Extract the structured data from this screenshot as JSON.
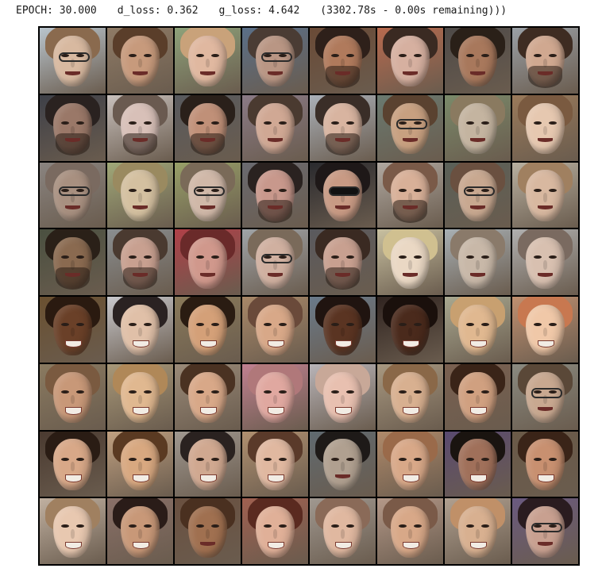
{
  "status": {
    "epoch_label": "EPOCH:",
    "epoch_value": "30.000",
    "d_loss_label": "d_loss:",
    "d_loss_value": "0.362",
    "g_loss_label": "g_loss:",
    "g_loss_value": "4.642",
    "timing": "(3302.78s - 0.00s remaining)))"
  },
  "grid": {
    "rows": 8,
    "cols": 8,
    "tiles": [
      {
        "skin": "#d8b9a0",
        "hair": "#8a6a4e",
        "bg": "#b9c4cc",
        "style": "specs"
      },
      {
        "skin": "#c79a7c",
        "hair": "#5a3e2a",
        "bg": "#8f7b66",
        "style": "plain"
      },
      {
        "skin": "#e0b8a0",
        "hair": "#c9a27a",
        "bg": "#8ea27a",
        "style": "plain"
      },
      {
        "skin": "#b99684",
        "hair": "#4a3c34",
        "bg": "#5a6f88",
        "style": "specs"
      },
      {
        "skin": "#b07a5c",
        "hair": "#2e201a",
        "bg": "#6a4a36",
        "style": "bearded"
      },
      {
        "skin": "#d6b0a0",
        "hair": "#3a2a22",
        "bg": "#b86a4e",
        "style": "plain"
      },
      {
        "skin": "#a8785c",
        "hair": "#2a2018",
        "bg": "#4e4a48",
        "style": "plain"
      },
      {
        "skin": "#d0a890",
        "hair": "#3e2c22",
        "bg": "#9aa0a6",
        "style": "bearded"
      },
      {
        "skin": "#9a7868",
        "hair": "#2a2220",
        "bg": "#3e4048",
        "style": "bearded"
      },
      {
        "skin": "#d8c0b8",
        "hair": "#6a5a50",
        "bg": "#c8c0bc",
        "style": "bearded"
      },
      {
        "skin": "#c09078",
        "hair": "#2a201a",
        "bg": "#585a5e",
        "style": "bearded"
      },
      {
        "skin": "#d0a894",
        "hair": "#4a3a30",
        "bg": "#8a7a86",
        "style": "plain"
      },
      {
        "skin": "#d8b4a0",
        "hair": "#3a2e28",
        "bg": "#aab0b8",
        "style": "bearded"
      },
      {
        "skin": "#c8a080",
        "hair": "#5a4230",
        "bg": "#6a7a70",
        "style": "specs"
      },
      {
        "skin": "#c4b4a0",
        "hair": "#8a7a60",
        "bg": "#7a8a6a",
        "style": "plain"
      },
      {
        "skin": "#e6c8b0",
        "hair": "#7a5a40",
        "bg": "#9a7a5a",
        "style": "plain"
      },
      {
        "skin": "#a89080",
        "hair": "#7a6a60",
        "bg": "#8a8480",
        "style": "specs"
      },
      {
        "skin": "#d4c0a0",
        "hair": "#9a8a60",
        "bg": "#a0a878",
        "style": "plain"
      },
      {
        "skin": "#d0b8a8",
        "hair": "#7a6a58",
        "bg": "#98a068",
        "style": "specs"
      },
      {
        "skin": "#c8988c",
        "hair": "#2a2220",
        "bg": "#6a6a70",
        "style": "bearded"
      },
      {
        "skin": "#c89a84",
        "hair": "#1e1818",
        "bg": "#2a2a2e",
        "style": "shades"
      },
      {
        "skin": "#d8b098",
        "hair": "#7a5a48",
        "bg": "#b0a8a0",
        "style": "bearded"
      },
      {
        "skin": "#c8a890",
        "hair": "#6a5040",
        "bg": "#5a6058",
        "style": "specs"
      },
      {
        "skin": "#d8b8a0",
        "hair": "#a08060",
        "bg": "#b8b0a0",
        "style": "plain"
      },
      {
        "skin": "#8a6a50",
        "hair": "#2a2018",
        "bg": "#4a5040",
        "style": "bearded"
      },
      {
        "skin": "#c8a090",
        "hair": "#4a3a30",
        "bg": "#8a8e90",
        "style": "bearded"
      },
      {
        "skin": "#d0988c",
        "hair": "#6a2a2a",
        "bg": "#b04048",
        "style": "plain"
      },
      {
        "skin": "#d0b0a0",
        "hair": "#7a6a5a",
        "bg": "#a0a4a8",
        "style": "specs"
      },
      {
        "skin": "#c8a090",
        "hair": "#3a2a22",
        "bg": "#5a5a5e",
        "style": "bearded"
      },
      {
        "skin": "#ead8c4",
        "hair": "#d0c090",
        "bg": "#c8c0a0",
        "style": "plain"
      },
      {
        "skin": "#c8b8a8",
        "hair": "#8a7a6a",
        "bg": "#a8b0b4",
        "style": "plain"
      },
      {
        "skin": "#d8c0b0",
        "hair": "#7a6a60",
        "bg": "#b0b0b0",
        "style": "plain"
      },
      {
        "skin": "#6a4028",
        "hair": "#2a1a10",
        "bg": "#6a5030",
        "style": "smile"
      },
      {
        "skin": "#e0c0a8",
        "hair": "#2a2222",
        "bg": "#c8c8cc",
        "style": "smile"
      },
      {
        "skin": "#d4a078",
        "hair": "#2a1c12",
        "bg": "#8a7a5a",
        "style": "smile"
      },
      {
        "skin": "#d8a888",
        "hair": "#6a4a3a",
        "bg": "#a88868",
        "style": "smile"
      },
      {
        "skin": "#5a3422",
        "hair": "#201410",
        "bg": "#6a7a8a",
        "style": "smile"
      },
      {
        "skin": "#4a2a1c",
        "hair": "#1a100c",
        "bg": "#302420",
        "style": "smile"
      },
      {
        "skin": "#e0b890",
        "hair": "#c8a070",
        "bg": "#a8a890",
        "style": "smile"
      },
      {
        "skin": "#f0c8a8",
        "hair": "#c87850",
        "bg": "#c09070",
        "style": "smile"
      },
      {
        "skin": "#c89878",
        "hair": "#7a5a40",
        "bg": "#8a7a60",
        "style": "smile"
      },
      {
        "skin": "#e0b890",
        "hair": "#b08858",
        "bg": "#a89878",
        "style": "smile"
      },
      {
        "skin": "#d8a888",
        "hair": "#4a3222",
        "bg": "#9a8a78",
        "style": "smile"
      },
      {
        "skin": "#e0a8a0",
        "hair": "#b0787a",
        "bg": "#c08090",
        "style": "smile"
      },
      {
        "skin": "#e8c0b0",
        "hair": "#c8a898",
        "bg": "#b8b4b8",
        "style": "smile"
      },
      {
        "skin": "#d8b090",
        "hair": "#8a6848",
        "bg": "#a89880",
        "style": "smile"
      },
      {
        "skin": "#d0a080",
        "hair": "#3a2418",
        "bg": "#7a6050",
        "style": "smile"
      },
      {
        "skin": "#c8a890",
        "hair": "#5a4838",
        "bg": "#8a8a80",
        "style": "specs"
      },
      {
        "skin": "#d8a888",
        "hair": "#2a1c14",
        "bg": "#4a3a30",
        "style": "smile"
      },
      {
        "skin": "#d8a880",
        "hair": "#5a3a22",
        "bg": "#c0a080",
        "style": "smile"
      },
      {
        "skin": "#d0a890",
        "hair": "#2a2220",
        "bg": "#a09890",
        "style": "smile"
      },
      {
        "skin": "#e0b8a0",
        "hair": "#5a3a2a",
        "bg": "#b09070",
        "style": "smile"
      },
      {
        "skin": "#b0a090",
        "hair": "#1e1a18",
        "bg": "#606a70",
        "style": "plain"
      },
      {
        "skin": "#d8a888",
        "hair": "#9a6a4a",
        "bg": "#b08a6a",
        "style": "smile"
      },
      {
        "skin": "#a0705a",
        "hair": "#1a1410",
        "bg": "#5a4a70",
        "style": "smile"
      },
      {
        "skin": "#c89070",
        "hair": "#3a2418",
        "bg": "#6a5a48",
        "style": "smile"
      },
      {
        "skin": "#e8c8b0",
        "hair": "#a08060",
        "bg": "#c0b0a0",
        "style": "smile"
      },
      {
        "skin": "#c89878",
        "hair": "#2a1c18",
        "bg": "#8a7068",
        "style": "smile"
      },
      {
        "skin": "#a07050",
        "hair": "#4a3020",
        "bg": "#6a5040",
        "style": "plain"
      },
      {
        "skin": "#e0b098",
        "hair": "#5a2a20",
        "bg": "#a06050",
        "style": "smile"
      },
      {
        "skin": "#e0b8a0",
        "hair": "#8a6a58",
        "bg": "#a09890",
        "style": "smile"
      },
      {
        "skin": "#d8a888",
        "hair": "#7a5a48",
        "bg": "#b49888",
        "style": "smile"
      },
      {
        "skin": "#d8b090",
        "hair": "#c09068",
        "bg": "#b0a090",
        "style": "smile"
      },
      {
        "skin": "#c8a090",
        "hair": "#2a1c20",
        "bg": "#6a5a80",
        "style": "specs"
      }
    ]
  }
}
